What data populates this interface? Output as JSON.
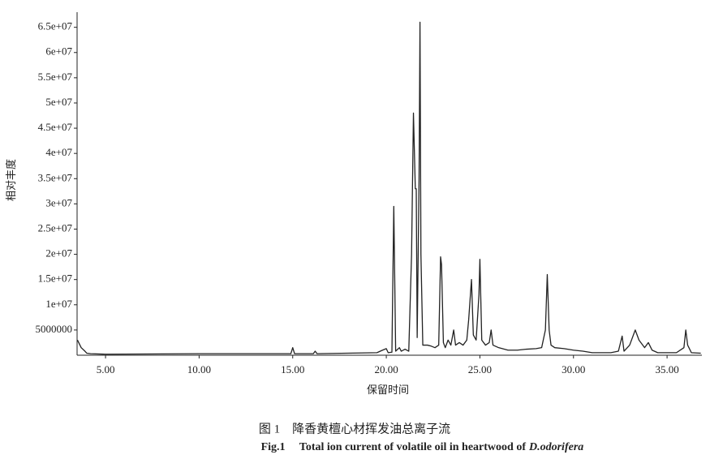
{
  "chart_data": {
    "type": "line",
    "y_label": "相对丰度",
    "x_label": "保留时间",
    "caption_zh": "图 1　降香黄檀心材挥发油总离子流",
    "caption_en": "Fig.1　 Total ion current of volatile oil in heartwood of",
    "caption_species": "D.odorifera",
    "xlim": [
      3.48,
      36.86
    ],
    "ylim": [
      0,
      68000000
    ],
    "xticks": [
      {
        "value": 5,
        "label": "5.00"
      },
      {
        "value": 10,
        "label": "10.00"
      },
      {
        "value": 15,
        "label": "15.00"
      },
      {
        "value": 20,
        "label": "20.00"
      },
      {
        "value": 25,
        "label": "25.00"
      },
      {
        "value": 30,
        "label": "30.00"
      },
      {
        "value": 35,
        "label": "35.00"
      }
    ],
    "yticks": [
      5000000,
      {
        "value": 10000000,
        "label": "1e+07"
      },
      {
        "value": 15000000,
        "label": "1.5e+07"
      },
      {
        "value": 20000000,
        "label": "2e+07"
      },
      {
        "value": 25000000,
        "label": "2.5e+07"
      },
      {
        "value": 30000000,
        "label": "3e+07"
      },
      {
        "value": 35000000,
        "label": "3.5e+07"
      },
      {
        "value": 40000000,
        "label": "4e+07"
      },
      {
        "value": 45000000,
        "label": "4.5e+07"
      },
      {
        "value": 50000000,
        "label": "5e+07"
      },
      {
        "value": 55000000,
        "label": "5.5e+07"
      },
      {
        "value": 60000000,
        "label": "6e+07"
      },
      {
        "value": 65000000,
        "label": "6.5e+07"
      }
    ],
    "x": [
      3.5,
      3.7,
      3.9,
      4.0,
      4.2,
      5,
      10,
      14.9,
      15.0,
      15.1,
      16.1,
      16.2,
      16.3,
      19.5,
      19.8,
      20.0,
      20.1,
      20.3,
      20.4,
      20.5,
      20.7,
      20.8,
      21.0,
      21.2,
      21.35,
      21.45,
      21.55,
      21.6,
      21.65,
      21.75,
      21.8,
      21.85,
      21.95,
      22.2,
      22.4,
      22.6,
      22.8,
      22.9,
      22.95,
      23.05,
      23.15,
      23.3,
      23.45,
      23.6,
      23.7,
      23.9,
      24.1,
      24.3,
      24.4,
      24.55,
      24.65,
      24.8,
      24.95,
      25.0,
      25.1,
      25.3,
      25.5,
      25.6,
      25.7,
      26,
      26.5,
      27,
      27.5,
      28,
      28.3,
      28.5,
      28.6,
      28.7,
      28.8,
      29,
      29.5,
      30,
      30.5,
      31,
      32,
      32.4,
      32.6,
      32.7,
      33,
      33.3,
      33.5,
      33.8,
      34.0,
      34.2,
      34.5,
      35.5,
      35.9,
      36.0,
      36.1,
      36.3,
      36.8
    ],
    "series": [
      {
        "color": "#222222",
        "values": [
          3000000,
          1500000,
          800000,
          400000,
          300000,
          200000,
          300000,
          300000,
          1500000,
          300000,
          300000,
          800000,
          300000,
          500000,
          1000000,
          1300000,
          500000,
          600000,
          29500000,
          800000,
          1500000,
          800000,
          1200000,
          800000,
          20000000,
          48000000,
          33000000,
          33000000,
          3500000,
          35000000,
          66000000,
          20000000,
          2000000,
          2000000,
          1800000,
          1500000,
          2000000,
          19500000,
          18000000,
          2500000,
          1500000,
          3000000,
          2000000,
          5000000,
          2000000,
          2500000,
          2000000,
          3000000,
          7000000,
          15000000,
          4000000,
          3000000,
          12000000,
          19000000,
          3000000,
          2000000,
          2500000,
          5000000,
          2000000,
          1500000,
          1000000,
          1000000,
          1200000,
          1300000,
          1500000,
          5000000,
          16000000,
          5000000,
          2000000,
          1500000,
          1300000,
          1000000,
          800000,
          500000,
          500000,
          800000,
          3800000,
          800000,
          2000000,
          5000000,
          3000000,
          1500000,
          2500000,
          1000000,
          500000,
          500000,
          1500000,
          5000000,
          2000000,
          500000,
          400000
        ]
      }
    ]
  }
}
